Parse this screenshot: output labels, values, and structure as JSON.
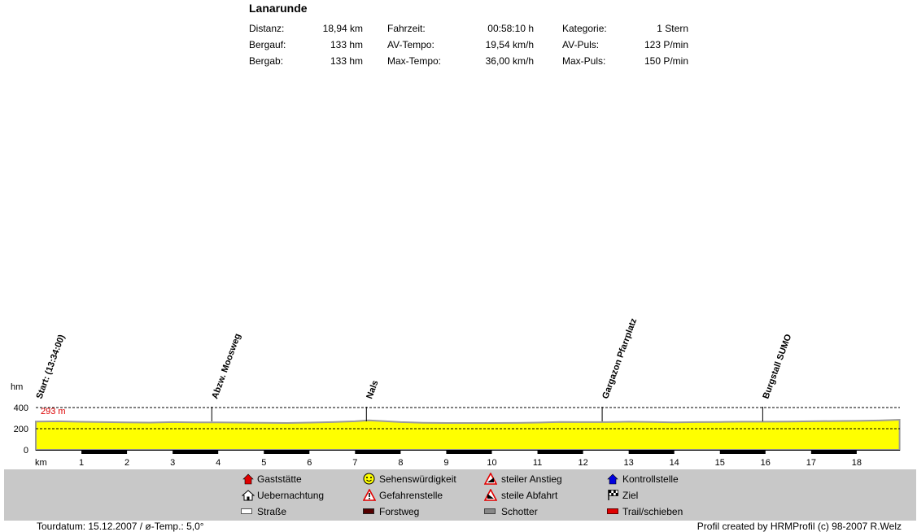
{
  "header": {
    "title": "Lanarunde",
    "stats": [
      {
        "label": "Distanz:",
        "value": "18,94 km"
      },
      {
        "label": "Bergauf:",
        "value": "133 hm"
      },
      {
        "label": "Bergab:",
        "value": "133 hm"
      },
      {
        "label": "Fahrzeit:",
        "value": "00:58:10 h"
      },
      {
        "label": "AV-Tempo:",
        "value": "19,54 km/h"
      },
      {
        "label": "Max-Tempo:",
        "value": "36,00 km/h"
      },
      {
        "label": "Kategorie:",
        "value": "1 Stern"
      },
      {
        "label": "AV-Puls:",
        "value": "123 P/min"
      },
      {
        "label": "Max-Puls:",
        "value": "150 P/min"
      }
    ]
  },
  "chart_data": {
    "type": "area",
    "xlabel": "km",
    "ylabel": "hm",
    "xlim": [
      0,
      19
    ],
    "ylim": [
      0,
      400
    ],
    "x_ticks": [
      1,
      2,
      3,
      4,
      5,
      6,
      7,
      8,
      9,
      10,
      11,
      12,
      13,
      14,
      15,
      16,
      17,
      18
    ],
    "y_ticks": [
      0,
      200,
      400
    ],
    "max_label": "293 m",
    "reference_lines": [
      200,
      400
    ],
    "fill_color": "#ffff00",
    "series": [
      {
        "x": [
          0,
          0.5,
          1,
          1.5,
          2,
          2.5,
          3,
          3.5,
          4,
          4.5,
          5,
          5.5,
          6,
          6.5,
          7,
          7.3,
          7.6,
          8,
          8.5,
          9,
          9.5,
          10,
          10.5,
          11,
          11.5,
          12,
          12.5,
          13,
          13.5,
          14,
          14.5,
          15,
          15.5,
          16,
          16.5,
          17,
          17.5,
          18,
          18.5,
          18.94
        ],
        "values": [
          268,
          270,
          265,
          262,
          260,
          258,
          262,
          260,
          260,
          258,
          256,
          254,
          258,
          262,
          270,
          279,
          272,
          262,
          256,
          254,
          254,
          254,
          255,
          258,
          264,
          262,
          262,
          266,
          264,
          260,
          262,
          264,
          266,
          266,
          268,
          270,
          272,
          274,
          278,
          285
        ]
      }
    ],
    "waypoints": [
      {
        "km": 0.0,
        "label": "Start: (13:34:00)"
      },
      {
        "km": 3.85,
        "label": "Abzw. Moosweg"
      },
      {
        "km": 7.24,
        "label": "Nals"
      },
      {
        "km": 12.41,
        "label": "Gargazon Pfarrplatz"
      },
      {
        "km": 15.93,
        "label": "Burgstall SUMO"
      }
    ],
    "surface_segments": [
      {
        "from": 1.0,
        "to": 2.0,
        "type": "Forstweg"
      },
      {
        "from": 3.0,
        "to": 4.0,
        "type": "Forstweg"
      },
      {
        "from": 5.0,
        "to": 6.0,
        "type": "Forstweg"
      },
      {
        "from": 7.0,
        "to": 8.0,
        "type": "Forstweg"
      },
      {
        "from": 9.0,
        "to": 10.0,
        "type": "Forstweg"
      },
      {
        "from": 11.0,
        "to": 12.0,
        "type": "Forstweg"
      },
      {
        "from": 13.0,
        "to": 14.0,
        "type": "Forstweg"
      },
      {
        "from": 15.0,
        "to": 16.0,
        "type": "Forstweg"
      },
      {
        "from": 17.0,
        "to": 18.0,
        "type": "Forstweg"
      }
    ]
  },
  "legend": [
    {
      "icon": "red-house-icon",
      "label": "Gaststätte"
    },
    {
      "icon": "house-outline-icon",
      "label": "Uebernachtung"
    },
    {
      "icon": "white-bar-icon",
      "label": "Straße"
    },
    {
      "icon": "smiley-icon",
      "label": "Sehenswürdigkeit"
    },
    {
      "icon": "warning-triangle-icon",
      "label": "Gefahrenstelle"
    },
    {
      "icon": "dark-red-bar-icon",
      "label": "Forstweg"
    },
    {
      "icon": "climb-triangle-icon",
      "label": "steiler Anstieg"
    },
    {
      "icon": "descent-triangle-icon",
      "label": "steile Abfahrt"
    },
    {
      "icon": "gray-bar-icon",
      "label": "Schotter"
    },
    {
      "icon": "blue-house-icon",
      "label": "Kontrollstelle"
    },
    {
      "icon": "checkered-flag-icon",
      "label": "Ziel"
    },
    {
      "icon": "red-bar-icon",
      "label": "Trail/schieben"
    }
  ],
  "footer": {
    "left": "Tourdatum: 15.12.2007  /  ø-Temp.: 5,0°",
    "right": "Profil created by HRMProfil (c) 98-2007 R.Welz"
  }
}
